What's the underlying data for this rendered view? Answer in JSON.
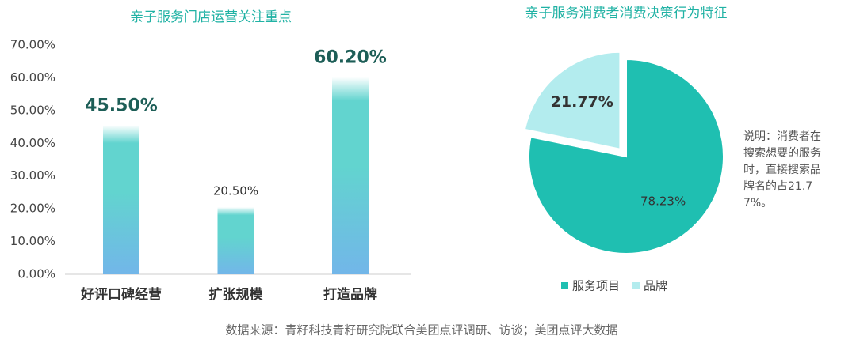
{
  "chart_data": [
    {
      "type": "bar",
      "title": "亲子服务门店运营关注重点",
      "categories": [
        "好评口碑经营",
        "扩张规模",
        "打造品牌"
      ],
      "values": [
        45.5,
        20.5,
        60.2
      ],
      "value_labels": [
        "45.50%",
        "20.50%",
        "60.20%"
      ],
      "ylim": [
        0,
        70
      ],
      "yticks": [
        {
          "value": 0,
          "label": "0.00%"
        },
        {
          "value": 10,
          "label": "10.00%"
        },
        {
          "value": 20,
          "label": "20.00%"
        },
        {
          "value": 30,
          "label": "30.00%"
        },
        {
          "value": 40,
          "label": "40.00%"
        },
        {
          "value": 50,
          "label": "50.00%"
        },
        {
          "value": 60,
          "label": "60.00%"
        },
        {
          "value": 70,
          "label": "70.00%"
        }
      ],
      "colors": [
        "#62d4cf",
        "#72b6e9"
      ]
    },
    {
      "type": "pie",
      "title": "亲子服务消费者消费决策行为特征",
      "categories": [
        "服务项目",
        "品牌"
      ],
      "values": [
        78.23,
        21.77
      ],
      "value_labels": [
        "78.23%",
        "21.77%"
      ],
      "colors": [
        "#1fbfb1",
        "#b3ecee"
      ],
      "annotation": "说明：消费者在搜索想要的服务时，直接搜索品牌名的占21.77%。"
    }
  ],
  "source": "数据来源：青籽科技青籽研究院联合美团点评调研、访谈；美团点评大数据"
}
